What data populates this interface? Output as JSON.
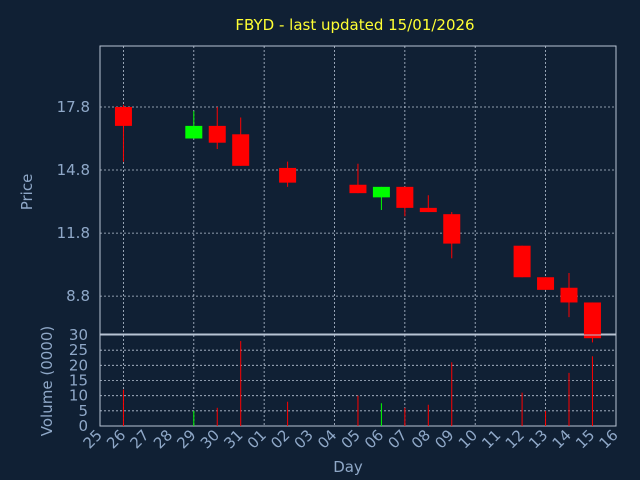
{
  "chart_data": {
    "type": "candlestick",
    "title": "FBYD - last updated 15/01/2026",
    "xlabel": "Day",
    "price_panel": {
      "ylabel": "Price",
      "yticks": [
        "8.8",
        "11.8",
        "14.8",
        "17.8"
      ],
      "ylim": [
        7.0,
        20.7
      ],
      "grid": true
    },
    "volume_panel": {
      "ylabel": "Volume (0000)",
      "yticks": [
        "0",
        "5",
        "10",
        "15",
        "20",
        "25",
        "30"
      ],
      "ylim": [
        0,
        30
      ],
      "grid": true
    },
    "x_ticks": [
      "25",
      "26",
      "27",
      "28",
      "29",
      "30",
      "31",
      "01",
      "02",
      "03",
      "04",
      "05",
      "06",
      "07",
      "08",
      "09",
      "10",
      "11",
      "12",
      "13",
      "14",
      "15",
      "16"
    ],
    "colors": {
      "up": "#00ff00",
      "down": "#ff0000",
      "background": "#102034",
      "title": "#ffff33",
      "labels": "#8fa8c8"
    },
    "candles": [
      {
        "day": "26",
        "open": 17.8,
        "close": 16.9,
        "high": 17.9,
        "low": 15.2,
        "volume": 12
      },
      {
        "day": "29",
        "open": 16.3,
        "close": 16.9,
        "high": 17.6,
        "low": 16.3,
        "volume": 5
      },
      {
        "day": "30",
        "open": 16.9,
        "close": 16.1,
        "high": 17.8,
        "low": 15.8,
        "volume": 6
      },
      {
        "day": "31",
        "open": 16.5,
        "close": 15.0,
        "high": 17.3,
        "low": 15.0,
        "volume": 28
      },
      {
        "day": "02",
        "open": 14.9,
        "close": 14.2,
        "high": 15.2,
        "low": 14.0,
        "volume": 8
      },
      {
        "day": "05",
        "open": 14.1,
        "close": 13.7,
        "high": 15.1,
        "low": 13.7,
        "volume": 10
      },
      {
        "day": "06",
        "open": 13.5,
        "close": 14.0,
        "high": 14.0,
        "low": 12.9,
        "volume": 7.5
      },
      {
        "day": "07",
        "open": 14.0,
        "close": 13.0,
        "high": 14.0,
        "low": 12.6,
        "volume": 6
      },
      {
        "day": "08",
        "open": 13.0,
        "close": 12.8,
        "high": 13.6,
        "low": 12.8,
        "volume": 7
      },
      {
        "day": "09",
        "open": 12.7,
        "close": 11.3,
        "high": 12.8,
        "low": 10.6,
        "volume": 21
      },
      {
        "day": "12",
        "open": 11.2,
        "close": 9.7,
        "high": 11.2,
        "low": 9.7,
        "volume": 11
      },
      {
        "day": "13",
        "open": 9.7,
        "close": 9.1,
        "high": 9.7,
        "low": 9.1,
        "volume": 5
      },
      {
        "day": "14",
        "open": 9.2,
        "close": 8.5,
        "high": 9.9,
        "low": 7.8,
        "volume": 17.5
      },
      {
        "day": "15",
        "open": 8.5,
        "close": 6.8,
        "high": 8.5,
        "low": 6.6,
        "volume": 23
      }
    ]
  }
}
